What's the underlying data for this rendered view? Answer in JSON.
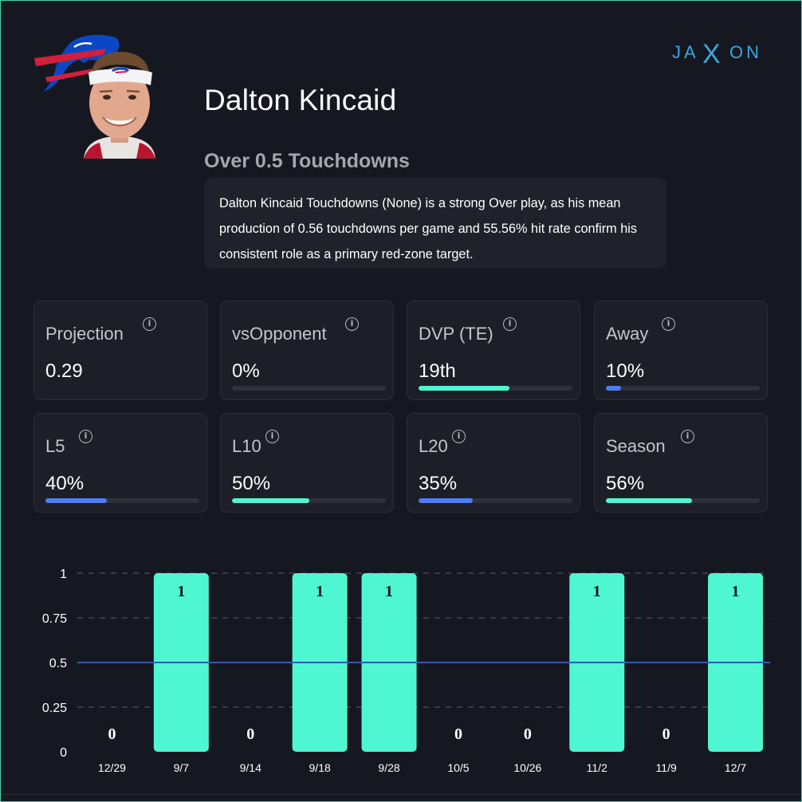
{
  "header": {
    "player_name": "Dalton Kincaid",
    "prop_line": "Over 0.5 Touchdowns",
    "analysis": "Dalton Kincaid Touchdowns (None) is a strong Over play, as his mean production of 0.56 touchdowns per game and 55.56% hit rate confirm his consistent role as a primary red-zone target.",
    "brand_left": "JA",
    "brand_x": "X",
    "brand_right": "ON"
  },
  "colors": {
    "accent_teal": "#4ef6d2",
    "accent_blue": "#4d7cf4",
    "reference_line": "#3558b8",
    "team_red": "#d21f3c",
    "team_blue": "#0b47c4"
  },
  "stats": [
    {
      "label": "Projection",
      "value": "0.29",
      "progress": null,
      "color": null
    },
    {
      "label": "vsOpponent",
      "value": "0%",
      "progress": 0,
      "color": "#4ef6d2"
    },
    {
      "label": "DVP (TE)",
      "value": "19th",
      "progress": 0.59,
      "color": "#4ef6d2"
    },
    {
      "label": "Away",
      "value": "10%",
      "progress": 0.1,
      "color": "#4d7cf4"
    },
    {
      "label": "L5",
      "value": "40%",
      "progress": 0.4,
      "color": "#4d7cf4"
    },
    {
      "label": "L10",
      "value": "50%",
      "progress": 0.5,
      "color": "#4ef6d2"
    },
    {
      "label": "L20",
      "value": "35%",
      "progress": 0.35,
      "color": "#4d7cf4"
    },
    {
      "label": "Season",
      "value": "56%",
      "progress": 0.56,
      "color": "#4ef6d2"
    }
  ],
  "chart_data": {
    "type": "bar",
    "title": "",
    "xlabel": "",
    "ylabel": "",
    "categories": [
      "12/29",
      "9/7",
      "9/14",
      "9/18",
      "9/28",
      "10/5",
      "10/26",
      "11/2",
      "11/9",
      "12/7"
    ],
    "values": [
      0,
      1,
      0,
      1,
      1,
      0,
      0,
      1,
      0,
      1
    ],
    "ylim": [
      0,
      1
    ],
    "yticks": [
      0,
      0.25,
      0.5,
      0.75,
      1
    ],
    "ytick_labels": [
      "0",
      "0.25",
      "0.5",
      "0.75",
      "1"
    ],
    "reference_line": 0.5,
    "grid": "dashed-horizontal"
  }
}
